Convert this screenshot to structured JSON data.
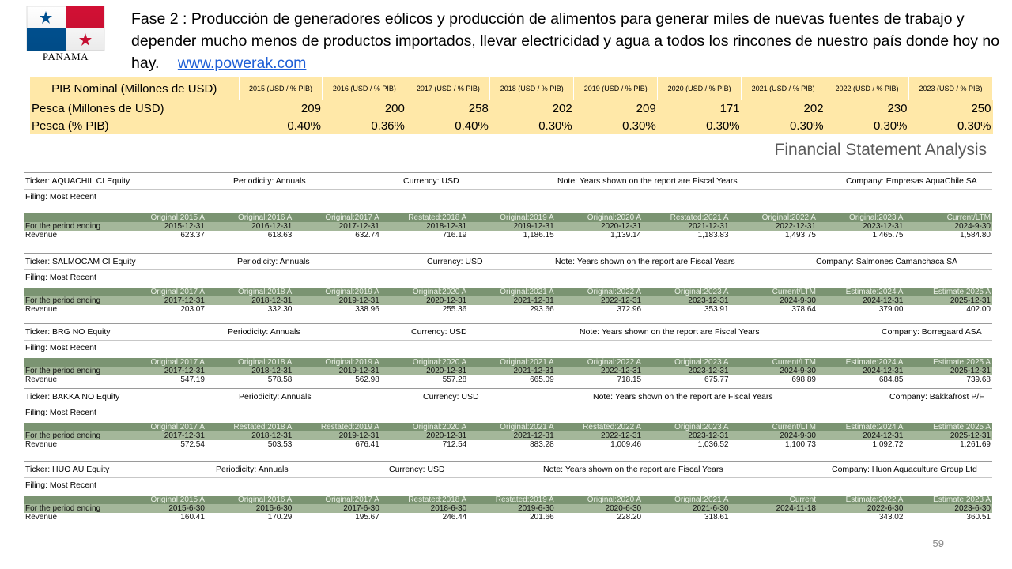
{
  "flag": {
    "caption": "PANAMA",
    "colors": {
      "red": "#d21034",
      "blue": "#005293"
    }
  },
  "heading": {
    "text": "Fase 2 : Producción de generadores eólicos y producción de alimentos para generar miles de nuevas fuentes de trabajo y depender mucho menos de productos importados, llevar electricidad y agua a todos los rincones de nuestro país donde hoy no hay.",
    "link": "www.powerak.com"
  },
  "pib_table": {
    "header": [
      "PIB Nominal (Millones de USD)",
      "2015 (USD / % PIB)",
      "2016 (USD / % PIB)",
      "2017 (USD / % PIB)",
      "2018 (USD / % PIB)",
      "2019 (USD / % PIB)",
      "2020 (USD / % PIB)",
      "2021 (USD / % PIB)",
      "2022 (USD / % PIB)",
      "2023 (USD / % PIB)"
    ],
    "rows": [
      [
        "Pesca (Millones de USD)",
        "209",
        "200",
        "258",
        "202",
        "209",
        "171",
        "202",
        "230",
        "250"
      ],
      [
        "Pesca (% PIB)",
        "0.40%",
        "0.36%",
        "0.40%",
        "0.30%",
        "0.30%",
        "0.30%",
        "0.30%",
        "0.30%",
        "0.30%"
      ]
    ]
  },
  "fsa_title": "Financial Statement Analysis",
  "blocks": [
    {
      "ticker": "Ticker: AQUACHIL CI Equity",
      "periodicity": "Periodicity: Annuals",
      "currency": "Currency: USD",
      "note": "Note: Years shown on the report are Fiscal Years",
      "company": "Company: Empresas AquaChile SA",
      "filing": "Filing: Most Recent",
      "row1": [
        "",
        "Original:2015 A",
        "Original:2016 A",
        "Original:2017 A",
        "Restated:2018 A",
        "Original:2019 A",
        "Original:2020 A",
        "Restated:2021 A",
        "Original:2022 A",
        "Original:2023 A",
        "Current/LTM"
      ],
      "row2": [
        "For the period ending",
        "2015-12-31",
        "2016-12-31",
        "2017-12-31",
        "2018-12-31",
        "2019-12-31",
        "2020-12-31",
        "2021-12-31",
        "2022-12-31",
        "2023-12-31",
        "2024-9-30"
      ],
      "row3": [
        "Revenue",
        "623.37",
        "618.63",
        "632.74",
        "716.19",
        "1,186.15",
        "1,139.14",
        "1,183.83",
        "1,493.75",
        "1,465.75",
        "1,584.80"
      ]
    },
    {
      "ticker": "Ticker: SALMOCAM CI Equity",
      "periodicity": "Periodicity: Annuals",
      "currency": "Currency: USD",
      "note": "Note: Years shown on the report are Fiscal Years",
      "company": "Company: Salmones Camanchaca SA",
      "filing": "Filing: Most Recent",
      "row1": [
        "",
        "Original:2017 A",
        "Original:2018 A",
        "Original:2019 A",
        "Original:2020 A",
        "Original:2021 A",
        "Original:2022 A",
        "Original:2023 A",
        "Current/LTM",
        "Estimate:2024 A",
        "Estimate:2025 A"
      ],
      "row2": [
        "For the period ending",
        "2017-12-31",
        "2018-12-31",
        "2019-12-31",
        "2020-12-31",
        "2021-12-31",
        "2022-12-31",
        "2023-12-31",
        "2024-9-30",
        "2024-12-31",
        "2025-12-31"
      ],
      "row3": [
        "Revenue",
        "203.07",
        "332.30",
        "338.96",
        "255.36",
        "293.66",
        "372.96",
        "353.91",
        "378.64",
        "379.00",
        "402.00"
      ]
    },
    {
      "ticker": "Ticker: BRG NO Equity",
      "periodicity": "Periodicity: Annuals",
      "currency": "Currency: USD",
      "note": "Note: Years shown on the report are Fiscal Years",
      "company": "Company: Borregaard ASA",
      "filing": "Filing: Most Recent",
      "row1": [
        "",
        "Original:2017 A",
        "Original:2018 A",
        "Original:2019 A",
        "Original:2020 A",
        "Original:2021 A",
        "Original:2022 A",
        "Original:2023 A",
        "Current/LTM",
        "Estimate:2024 A",
        "Estimate:2025 A"
      ],
      "row2": [
        "For the period ending",
        "2017-12-31",
        "2018-12-31",
        "2019-12-31",
        "2020-12-31",
        "2021-12-31",
        "2022-12-31",
        "2023-12-31",
        "2024-9-30",
        "2024-12-31",
        "2025-12-31"
      ],
      "row3": [
        "Revenue",
        "547.19",
        "578.58",
        "562.98",
        "557.28",
        "665.09",
        "718.15",
        "675.77",
        "698.89",
        "684.85",
        "739.68"
      ]
    },
    {
      "ticker": "Ticker: BAKKA NO Equity",
      "periodicity": "Periodicity: Annuals",
      "currency": "Currency: USD",
      "note": "Note: Years shown on the report are Fiscal Years",
      "company": "Company: Bakkafrost P/F",
      "filing": "Filing: Most Recent",
      "row1": [
        "",
        "Original:2017 A",
        "Restated:2018 A",
        "Restated:2019 A",
        "Original:2020 A",
        "Original:2021 A",
        "Restated:2022 A",
        "Original:2023 A",
        "Current/LTM",
        "Estimate:2024 A",
        "Estimate:2025 A"
      ],
      "row2": [
        "For the period ending",
        "2017-12-31",
        "2018-12-31",
        "2019-12-31",
        "2020-12-31",
        "2021-12-31",
        "2022-12-31",
        "2023-12-31",
        "2024-9-30",
        "2024-12-31",
        "2025-12-31"
      ],
      "row3": [
        "Revenue",
        "572.54",
        "503.53",
        "676.41",
        "712.54",
        "883.28",
        "1,009.46",
        "1,036.52",
        "1,100.73",
        "1,092.72",
        "1,261.69"
      ]
    },
    {
      "ticker": "Ticker: HUO AU Equity",
      "periodicity": "Periodicity: Annuals",
      "currency": "Currency: USD",
      "note": "Note: Years shown on the report are Fiscal Years",
      "company": "Company: Huon Aquaculture Group Ltd",
      "filing": "Filing: Most Recent",
      "row1": [
        "",
        "Original:2015 A",
        "Original:2016 A",
        "Original:2017 A",
        "Restated:2018 A",
        "Restated:2019 A",
        "Original:2020 A",
        "Original:2021 A",
        "Current",
        "Estimate:2022 A",
        "Estimate:2023 A"
      ],
      "row2": [
        "For the period ending",
        "2015-6-30",
        "2016-6-30",
        "2017-6-30",
        "2018-6-30",
        "2019-6-30",
        "2020-6-30",
        "2021-6-30",
        "2024-11-18",
        "2022-6-30",
        "2023-6-30"
      ],
      "row3": [
        "Revenue",
        "160.41",
        "170.29",
        "195.67",
        "246.44",
        "201.66",
        "228.20",
        "318.61",
        "",
        "343.02",
        "360.51"
      ]
    }
  ],
  "page_number": "59"
}
